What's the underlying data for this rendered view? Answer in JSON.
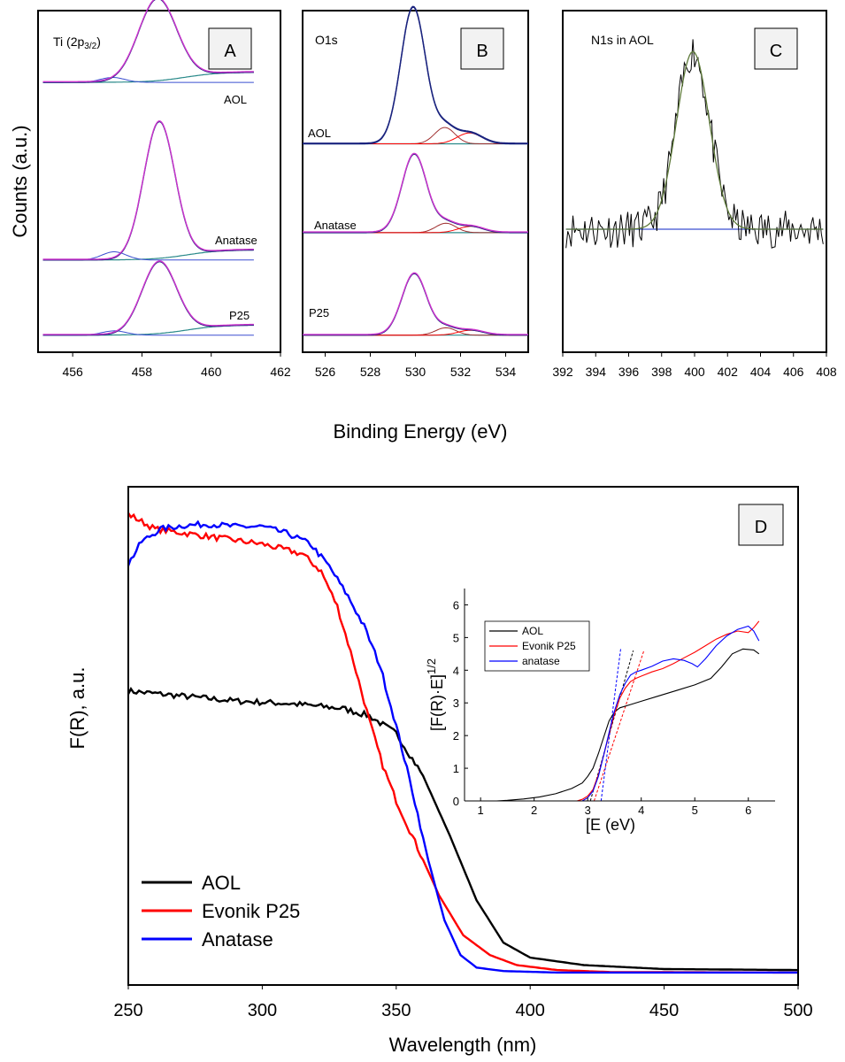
{
  "colors": {
    "black": "#000000",
    "red": "#ff0000",
    "blue": "#0000ff",
    "magenta": "#cc33cc",
    "teal": "#2a8a8a",
    "navy": "#1a237e",
    "fitBlue": "#3b4fd0",
    "darkred": "#a03030",
    "olive": "#5e7a3a"
  },
  "top": {
    "ylabel": "Counts (a.u.)",
    "xlabel": "Binding Energy (eV)"
  },
  "chart_data": [
    {
      "id": "A",
      "type": "line",
      "panel_label": "A",
      "title": "Ti (2p",
      "title_sub": "3/2",
      "title_close": ")",
      "xlim": [
        455,
        462
      ],
      "xticks": [
        456,
        458,
        460,
        462
      ],
      "ylim": [
        0,
        1
      ],
      "traces": [
        {
          "label": "AOL",
          "shape": "peak",
          "center": 458.45,
          "width": 0.55,
          "height": 0.24,
          "base": 0.79,
          "color_key": "magenta"
        },
        {
          "label": "Anatase",
          "shape": "peak",
          "center": 458.5,
          "width": 0.45,
          "height": 0.4,
          "base": 0.27,
          "color_key": "magenta"
        },
        {
          "label": "P25",
          "shape": "peak",
          "center": 458.5,
          "width": 0.5,
          "height": 0.21,
          "base": 0.05,
          "color_key": "magenta"
        }
      ]
    },
    {
      "id": "B",
      "type": "line",
      "panel_label": "B",
      "title": "O1s",
      "xlim": [
        525,
        535
      ],
      "xticks": [
        526,
        528,
        530,
        532,
        534
      ],
      "ylim": [
        0,
        1
      ],
      "traces": [
        {
          "label": "AOL",
          "center": 529.9,
          "width": 0.55,
          "height": 0.4,
          "base": 0.61,
          "color_key": "navy"
        },
        {
          "label": "Anatase",
          "center": 529.95,
          "width": 0.55,
          "height": 0.23,
          "base": 0.35,
          "color_key": "magenta"
        },
        {
          "label": "P25",
          "center": 529.95,
          "width": 0.55,
          "height": 0.18,
          "base": 0.05,
          "color_key": "magenta"
        }
      ]
    },
    {
      "id": "C",
      "type": "line",
      "panel_label": "C",
      "title": "N1s in AOL",
      "xlim": [
        392,
        408
      ],
      "xticks": [
        392,
        394,
        396,
        398,
        400,
        402,
        404,
        406,
        408
      ],
      "ylim": [
        0,
        1
      ],
      "peak": {
        "center": 399.9,
        "width": 1.0,
        "height": 0.52,
        "base": 0.36
      }
    },
    {
      "id": "D",
      "type": "line",
      "panel_label": "D",
      "xlabel": "Wavelength (nm)",
      "ylabel": "F(R), a.u.",
      "xlim": [
        250,
        500
      ],
      "xticks": [
        250,
        300,
        350,
        400,
        450,
        500
      ],
      "ylim": [
        0,
        1
      ],
      "legend": "bottom-left",
      "series": [
        {
          "name": "AOL",
          "color_key": "black",
          "x": [
            250,
            270,
            290,
            310,
            330,
            340,
            350,
            360,
            370,
            380,
            390,
            400,
            420,
            450,
            500
          ],
          "y": [
            0.59,
            0.58,
            0.57,
            0.565,
            0.555,
            0.54,
            0.505,
            0.42,
            0.3,
            0.17,
            0.085,
            0.055,
            0.04,
            0.032,
            0.03
          ]
        },
        {
          "name": "Evonik P25",
          "color_key": "red",
          "x": [
            250,
            260,
            280,
            300,
            315,
            322,
            328,
            334,
            340,
            345,
            350,
            358,
            366,
            375,
            385,
            395,
            410,
            430,
            500
          ],
          "y": [
            0.945,
            0.915,
            0.9,
            0.885,
            0.865,
            0.83,
            0.76,
            0.65,
            0.53,
            0.44,
            0.37,
            0.275,
            0.18,
            0.1,
            0.06,
            0.04,
            0.03,
            0.026,
            0.025
          ]
        },
        {
          "name": "Anatase",
          "color_key": "blue",
          "x": [
            250,
            255,
            262,
            270,
            280,
            290,
            300,
            310,
            318,
            325,
            332,
            338,
            344,
            350,
            356,
            362,
            368,
            374,
            380,
            390,
            410,
            500
          ],
          "y": [
            0.845,
            0.89,
            0.915,
            0.922,
            0.925,
            0.92,
            0.92,
            0.905,
            0.885,
            0.84,
            0.78,
            0.72,
            0.64,
            0.52,
            0.39,
            0.25,
            0.13,
            0.06,
            0.035,
            0.028,
            0.025,
            0.025
          ]
        }
      ]
    },
    {
      "id": "D-inset",
      "type": "line",
      "xlabel": "[E (eV)",
      "ylabel": "[F(R)·E]",
      "ylabel_sup": "1/2",
      "xlim": [
        0.7,
        6.5
      ],
      "ylim": [
        0,
        6.5
      ],
      "xticks": [
        1,
        2,
        3,
        4,
        5,
        6
      ],
      "yticks": [
        0,
        1,
        2,
        3,
        4,
        5,
        6
      ],
      "legend": "top-left",
      "series": [
        {
          "name": "AOL",
          "color_key": "black",
          "x": [
            1.3,
            1.5,
            1.8,
            2.1,
            2.4,
            2.7,
            2.9,
            3.0,
            3.1,
            3.2,
            3.3,
            3.4,
            3.5,
            3.6,
            3.8,
            4.0,
            4.3,
            4.6,
            5.0,
            5.3,
            5.5,
            5.7,
            5.9,
            6.1,
            6.2
          ],
          "y": [
            0.0,
            0.02,
            0.06,
            0.12,
            0.22,
            0.38,
            0.55,
            0.75,
            1.0,
            1.45,
            1.95,
            2.45,
            2.72,
            2.85,
            2.95,
            3.05,
            3.2,
            3.35,
            3.55,
            3.75,
            4.1,
            4.5,
            4.65,
            4.62,
            4.5
          ]
        },
        {
          "name": "Evonik P25",
          "color_key": "red",
          "x": [
            2.8,
            2.9,
            3.0,
            3.1,
            3.2,
            3.3,
            3.4,
            3.5,
            3.6,
            3.7,
            3.8,
            3.9,
            4.0,
            4.2,
            4.4,
            4.6,
            4.8,
            5.0,
            5.2,
            5.4,
            5.6,
            5.8,
            6.0,
            6.1,
            6.2
          ],
          "y": [
            0.0,
            0.05,
            0.15,
            0.35,
            0.8,
            1.4,
            2.05,
            2.65,
            3.15,
            3.45,
            3.65,
            3.75,
            3.82,
            3.95,
            4.05,
            4.2,
            4.38,
            4.55,
            4.75,
            4.95,
            5.1,
            5.2,
            5.15,
            5.3,
            5.5
          ]
        },
        {
          "name": "anatase",
          "color_key": "blue",
          "x": [
            2.9,
            3.0,
            3.1,
            3.2,
            3.3,
            3.4,
            3.5,
            3.6,
            3.7,
            3.8,
            3.9,
            4.0,
            4.2,
            4.4,
            4.6,
            4.8,
            4.95,
            5.05,
            5.2,
            5.4,
            5.6,
            5.8,
            6.0,
            6.1,
            6.2
          ],
          "y": [
            0.0,
            0.1,
            0.3,
            0.75,
            1.4,
            2.1,
            2.75,
            3.25,
            3.6,
            3.85,
            3.95,
            4.0,
            4.12,
            4.28,
            4.35,
            4.3,
            4.2,
            4.1,
            4.35,
            4.75,
            5.05,
            5.25,
            5.35,
            5.2,
            4.9
          ]
        }
      ],
      "tangents": [
        {
          "color_key": "black",
          "x": [
            3.05,
            3.85
          ],
          "y": [
            0.0,
            4.6
          ]
        },
        {
          "color_key": "red",
          "x": [
            3.12,
            4.05
          ],
          "y": [
            0.0,
            4.6
          ]
        },
        {
          "color_key": "blue",
          "x": [
            3.25,
            3.62
          ],
          "y": [
            0.0,
            4.7
          ]
        }
      ]
    }
  ]
}
